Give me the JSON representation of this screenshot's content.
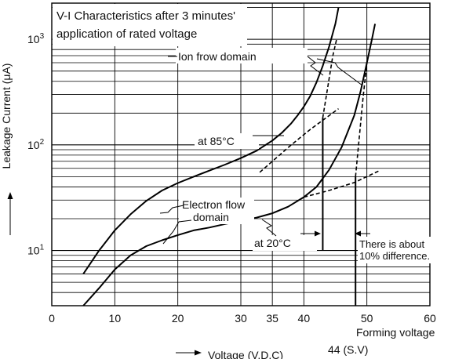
{
  "chart_data": {
    "type": "line",
    "title_lines": [
      "V-I Characteristics after 3 minutes'",
      "application of rated voltage"
    ],
    "xlabel": "Voltage (V.D.C)",
    "ylabel": "Leakage Current (μA)",
    "x_ticks": [
      0,
      10,
      20,
      30,
      35,
      40,
      50,
      60
    ],
    "xlim": [
      0,
      60
    ],
    "ylim": [
      3,
      2200
    ],
    "y_scale": "log",
    "y_ticks": [
      {
        "value": 10,
        "base": "10",
        "exp": "1"
      },
      {
        "value": 100,
        "base": "10",
        "exp": "2"
      },
      {
        "value": 1000,
        "base": "10",
        "exp": "3"
      }
    ],
    "grid": true,
    "series": [
      {
        "name": "at 85°C",
        "style": "solid",
        "x": [
          5.0,
          7.5,
          10.0,
          12.5,
          15.0,
          17.5,
          20.0,
          22.5,
          25.0,
          27.5,
          30.0,
          32.5,
          35.0,
          36.5,
          38.0,
          39.0,
          40.0,
          41.0,
          42.0,
          43.0,
          44.0,
          45.0,
          45.5
        ],
        "y": [
          6.0,
          10.0,
          15.5,
          22.0,
          29.5,
          37.0,
          43.5,
          50.0,
          57.0,
          65.0,
          75.0,
          88.0,
          110.0,
          130.0,
          160.0,
          190.0,
          230.0,
          290.0,
          390.0,
          560.0,
          850.0,
          1400.0,
          2000.0
        ]
      },
      {
        "name": "at 20°C",
        "style": "solid",
        "x": [
          5.0,
          7.5,
          10.0,
          12.5,
          15.0,
          17.5,
          20.0,
          22.5,
          25.0,
          27.5,
          30.0,
          32.5,
          35.0,
          37.5,
          40.0,
          42.0,
          44.0,
          46.0,
          48.0,
          49.0,
          50.0,
          50.8,
          51.3
        ],
        "y": [
          2.6,
          4.4,
          6.6,
          9.0,
          11.0,
          12.5,
          14.0,
          15.5,
          16.5,
          17.8,
          19.0,
          20.5,
          22.5,
          26.0,
          32.0,
          40.0,
          58.0,
          95.0,
          190.0,
          320.0,
          600.0,
          1000.0,
          1400.0
        ]
      }
    ],
    "dashed_lines": [
      {
        "x": [
          33.0,
          38.0,
          41.0,
          45.5
        ],
        "y": [
          55.0,
          100.0,
          140.0,
          220.0
        ]
      },
      {
        "x": [
          40.0,
          44.0,
          48.0,
          52.0
        ],
        "y": [
          32.0,
          37.0,
          44.0,
          57.0
        ]
      },
      {
        "x": [
          43.0,
          44.6,
          45.2
        ],
        "y": [
          180.0,
          700.0,
          1000.0
        ]
      },
      {
        "x": [
          48.2,
          49.4,
          50.0
        ],
        "y": [
          50.0,
          280.0,
          600.0
        ]
      }
    ],
    "forming_drops": [
      {
        "x": 43.0,
        "y_top": 180.0,
        "y_bottom": 10.0
      },
      {
        "x": 48.2,
        "y_top": 50.0,
        "y_bottom": 2.0
      }
    ],
    "annotations": {
      "ion_flow": "Ion frow domain",
      "at85": "at 85°C",
      "electron_line1": "Electron flow",
      "electron_line2": "domain",
      "at20": "at 20°C",
      "difference_line1": "There is about",
      "difference_line2": "10% difference.",
      "forming_voltage": "Forming voltage",
      "sv": "44 (S.V)"
    }
  }
}
